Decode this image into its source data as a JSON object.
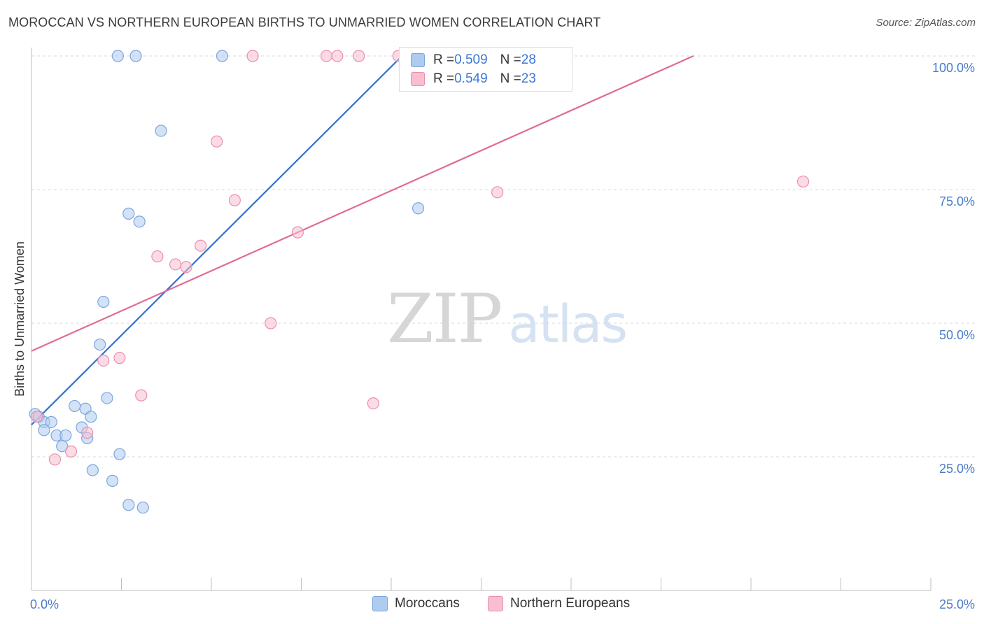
{
  "title": "MOROCCAN VS NORTHERN EUROPEAN BIRTHS TO UNMARRIED WOMEN CORRELATION CHART",
  "source": "Source: ZipAtlas.com",
  "watermark": {
    "zip": "ZIP",
    "atlas": "atlas"
  },
  "legend_top": {
    "rows": [
      {
        "r_label": "R = ",
        "r_value": "0.509",
        "n_label": "N = ",
        "n_value": "28"
      },
      {
        "r_label": "R = ",
        "r_value": "0.549",
        "n_label": "N = ",
        "n_value": "23"
      }
    ]
  },
  "legend_bottom": {
    "items": [
      "Moroccans",
      "Northern Europeans"
    ]
  },
  "colors": {
    "blue_fill": "#aecbf0",
    "blue_stroke": "#7aa7dc",
    "blue_line": "#2f72d0",
    "pink_fill": "#f7bfd0",
    "pink_stroke": "#eb8fae",
    "pink_line": "#e06b96",
    "grid": "#d9d9d9",
    "tick_text": "#4a7cc9"
  },
  "chart_data": {
    "type": "scatter",
    "title": "MOROCCAN VS NORTHERN EUROPEAN BIRTHS TO UNMARRIED WOMEN CORRELATION CHART",
    "xlabel": "",
    "ylabel": "Births to Unmarried Women",
    "xlim": [
      0,
      25
    ],
    "ylim": [
      0,
      102
    ],
    "x_tick_labels": [
      "0.0%",
      "25.0%"
    ],
    "y_tick_values": [
      25,
      50,
      75,
      100
    ],
    "y_tick_labels": [
      "25.0%",
      "50.0%",
      "75.0%",
      "100.0%"
    ],
    "grid": true,
    "series": [
      {
        "name": "Moroccans",
        "r": 0.509,
        "n": 28,
        "trend": {
          "x": [
            0,
            10.3
          ],
          "y": [
            31.0,
            100.0
          ]
        },
        "points": [
          {
            "x": 0.1,
            "y": 33.0
          },
          {
            "x": 0.2,
            "y": 32.5
          },
          {
            "x": 0.35,
            "y": 31.5
          },
          {
            "x": 0.55,
            "y": 31.5
          },
          {
            "x": 0.35,
            "y": 30.0
          },
          {
            "x": 0.7,
            "y": 29.0
          },
          {
            "x": 0.95,
            "y": 29.0
          },
          {
            "x": 0.85,
            "y": 27.0
          },
          {
            "x": 1.2,
            "y": 34.5
          },
          {
            "x": 1.4,
            "y": 30.5
          },
          {
            "x": 1.55,
            "y": 28.5
          },
          {
            "x": 1.5,
            "y": 34.0
          },
          {
            "x": 1.65,
            "y": 32.5
          },
          {
            "x": 1.7,
            "y": 22.5
          },
          {
            "x": 1.9,
            "y": 46.0
          },
          {
            "x": 2.0,
            "y": 54.0
          },
          {
            "x": 2.1,
            "y": 36.0
          },
          {
            "x": 2.25,
            "y": 20.5
          },
          {
            "x": 2.45,
            "y": 25.5
          },
          {
            "x": 2.7,
            "y": 16.0
          },
          {
            "x": 3.1,
            "y": 15.5
          },
          {
            "x": 2.7,
            "y": 70.5
          },
          {
            "x": 3.0,
            "y": 69.0
          },
          {
            "x": 3.6,
            "y": 86.0
          },
          {
            "x": 2.4,
            "y": 100.0
          },
          {
            "x": 2.9,
            "y": 100.0
          },
          {
            "x": 5.3,
            "y": 100.0
          },
          {
            "x": 10.75,
            "y": 71.5
          }
        ]
      },
      {
        "name": "Northern Europeans",
        "r": 0.549,
        "n": 23,
        "trend": {
          "x": [
            0,
            18.4
          ],
          "y": [
            44.8,
            100.0
          ]
        },
        "points": [
          {
            "x": 0.15,
            "y": 32.5
          },
          {
            "x": 0.65,
            "y": 24.5
          },
          {
            "x": 1.1,
            "y": 26.0
          },
          {
            "x": 1.55,
            "y": 29.5
          },
          {
            "x": 2.0,
            "y": 43.0
          },
          {
            "x": 2.45,
            "y": 43.5
          },
          {
            "x": 3.05,
            "y": 36.5
          },
          {
            "x": 3.5,
            "y": 62.5
          },
          {
            "x": 4.0,
            "y": 61.0
          },
          {
            "x": 4.3,
            "y": 60.5
          },
          {
            "x": 4.7,
            "y": 64.5
          },
          {
            "x": 5.15,
            "y": 84.0
          },
          {
            "x": 5.65,
            "y": 73.0
          },
          {
            "x": 6.65,
            "y": 50.0
          },
          {
            "x": 7.4,
            "y": 67.0
          },
          {
            "x": 9.5,
            "y": 35.0
          },
          {
            "x": 12.95,
            "y": 74.5
          },
          {
            "x": 21.45,
            "y": 76.5
          },
          {
            "x": 6.15,
            "y": 100.0
          },
          {
            "x": 8.2,
            "y": 100.0
          },
          {
            "x": 8.5,
            "y": 100.0
          },
          {
            "x": 9.1,
            "y": 100.0
          },
          {
            "x": 10.2,
            "y": 100.0
          }
        ]
      }
    ]
  }
}
